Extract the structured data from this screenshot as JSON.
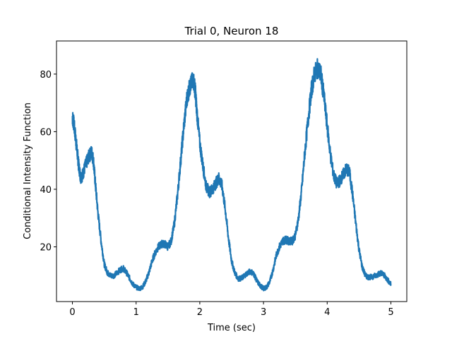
{
  "chart_data": {
    "type": "line",
    "title": "Trial 0, Neuron 18",
    "xlabel": "Time (sec)",
    "ylabel": "Conditional Intensity Function",
    "xlim": [
      -0.25,
      5.25
    ],
    "ylim": [
      1,
      91.5
    ],
    "xticks": [
      0,
      1,
      2,
      3,
      4,
      5
    ],
    "yticks": [
      20,
      40,
      60,
      80
    ],
    "grid": false,
    "colors": {
      "series": "#1f77b4"
    },
    "series": [
      {
        "x": [
          0.0,
          0.02,
          0.05,
          0.08,
          0.1,
          0.13,
          0.16,
          0.2,
          0.25,
          0.3,
          0.33,
          0.36,
          0.4,
          0.45,
          0.5,
          0.55,
          0.6,
          0.65,
          0.7,
          0.75,
          0.8,
          0.85,
          0.9,
          0.95,
          1.0,
          1.05,
          1.1,
          1.15,
          1.2,
          1.25,
          1.3,
          1.35,
          1.4,
          1.45,
          1.5,
          1.55,
          1.6,
          1.65,
          1.7,
          1.75,
          1.8,
          1.85,
          1.9,
          1.93,
          1.95,
          2.0,
          2.05,
          2.1,
          2.15,
          2.2,
          2.25,
          2.3,
          2.35,
          2.4,
          2.45,
          2.5,
          2.55,
          2.6,
          2.65,
          2.7,
          2.75,
          2.8,
          2.85,
          2.9,
          2.95,
          3.0,
          3.05,
          3.1,
          3.15,
          3.2,
          3.25,
          3.3,
          3.35,
          3.4,
          3.45,
          3.5,
          3.55,
          3.6,
          3.65,
          3.7,
          3.75,
          3.8,
          3.85,
          3.9,
          3.95,
          4.0,
          4.05,
          4.1,
          4.15,
          4.2,
          4.25,
          4.3,
          4.35,
          4.4,
          4.45,
          4.5,
          4.55,
          4.6,
          4.65,
          4.7,
          4.75,
          4.8,
          4.85,
          4.9,
          4.95,
          5.0
        ],
        "y": [
          65,
          63,
          58,
          52,
          48,
          44,
          45,
          48,
          51,
          53,
          50,
          42,
          32,
          22,
          14,
          11,
          10,
          10,
          11,
          12,
          12.5,
          11,
          9,
          7,
          6,
          5.5,
          6,
          8,
          11,
          15,
          18,
          20,
          21,
          21,
          20,
          22,
          28,
          38,
          50,
          62,
          72,
          76,
          78,
          74,
          68,
          56,
          48,
          41,
          39,
          40,
          42,
          44,
          41,
          33,
          23,
          15,
          11,
          9,
          9,
          10,
          11,
          11.5,
          10.5,
          8,
          6.5,
          5.5,
          6,
          8,
          12,
          17,
          20,
          22,
          22.5,
          22,
          22,
          24,
          30,
          40,
          53,
          64,
          74,
          80,
          82,
          80,
          72,
          62,
          52,
          45,
          42,
          43,
          45,
          47,
          46,
          38,
          28,
          19,
          13,
          10,
          9.5,
          9.5,
          10,
          10.5,
          11,
          10,
          8.5,
          7
        ]
      }
    ]
  }
}
